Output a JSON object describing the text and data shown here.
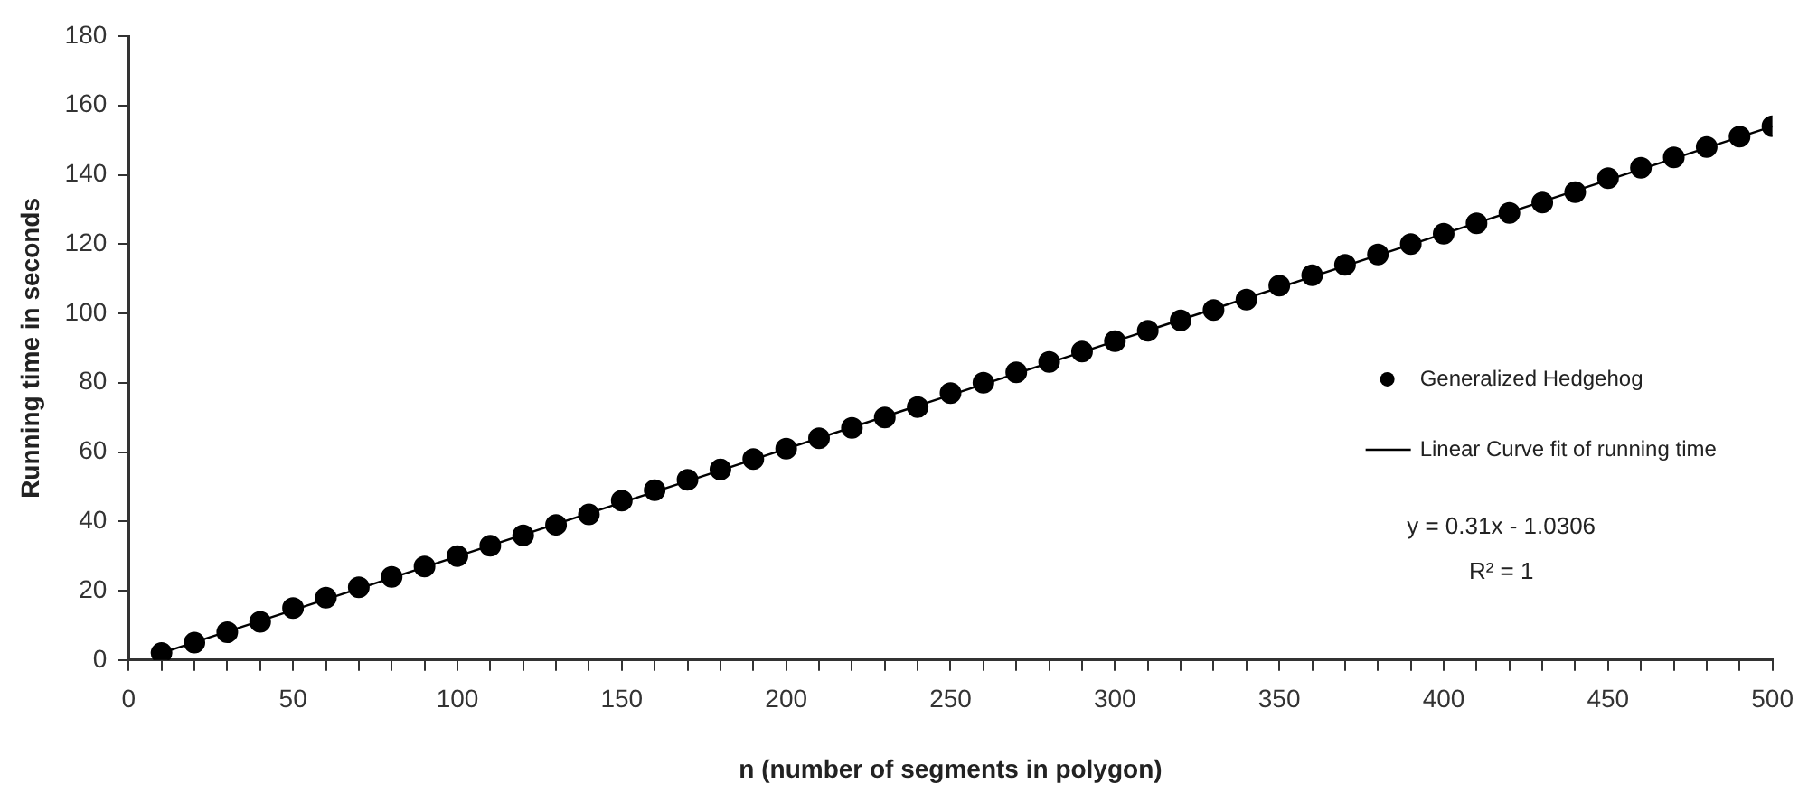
{
  "chart_data": {
    "type": "scatter",
    "xlabel": "n (number of segments in polygon)",
    "ylabel": "Running time in seconds",
    "x": [
      10,
      20,
      30,
      40,
      50,
      60,
      70,
      80,
      90,
      100,
      110,
      120,
      130,
      140,
      150,
      160,
      170,
      180,
      190,
      200,
      210,
      220,
      230,
      240,
      250,
      260,
      270,
      280,
      290,
      300,
      310,
      320,
      330,
      340,
      350,
      360,
      370,
      380,
      390,
      400,
      410,
      420,
      430,
      440,
      450,
      460,
      470,
      480,
      490,
      500
    ],
    "series": [
      {
        "name": "Generalized Hedgehog",
        "color": "#000000",
        "marker": "circle",
        "values": [
          2,
          5,
          8,
          11,
          15,
          18,
          21,
          24,
          27,
          30,
          33,
          36,
          39,
          42,
          46,
          49,
          52,
          55,
          58,
          61,
          64,
          67,
          70,
          73,
          77,
          80,
          83,
          86,
          89,
          92,
          95,
          98,
          101,
          104,
          108,
          111,
          114,
          117,
          120,
          123,
          126,
          129,
          132,
          135,
          139,
          142,
          145,
          148,
          151,
          154
        ]
      },
      {
        "name": "Linear Curve fit of running time",
        "type": "line",
        "color": "#000000",
        "marker": "none",
        "line_style": "solid",
        "x": [
          10,
          500
        ],
        "values": [
          2,
          154
        ]
      }
    ],
    "xlim": [
      0,
      500
    ],
    "xticks": [
      0,
      {
        "value": 10,
        "label": null
      },
      {
        "value": 20,
        "label": null
      },
      {
        "value": 30,
        "label": null
      },
      {
        "value": 40,
        "label": null
      },
      50,
      {
        "value": 60,
        "label": null
      },
      {
        "value": 70,
        "label": null
      },
      {
        "value": 80,
        "label": null
      },
      {
        "value": 90,
        "label": null
      },
      100,
      {
        "value": 110,
        "label": null
      },
      {
        "value": 120,
        "label": null
      },
      {
        "value": 130,
        "label": null
      },
      {
        "value": 140,
        "label": null
      },
      150,
      {
        "value": 160,
        "label": null
      },
      {
        "value": 170,
        "label": null
      },
      {
        "value": 180,
        "label": null
      },
      {
        "value": 190,
        "label": null
      },
      200,
      {
        "value": 210,
        "label": null
      },
      {
        "value": 220,
        "label": null
      },
      {
        "value": 230,
        "label": null
      },
      {
        "value": 240,
        "label": null
      },
      250,
      {
        "value": 260,
        "label": null
      },
      {
        "value": 270,
        "label": null
      },
      {
        "value": 280,
        "label": null
      },
      {
        "value": 290,
        "label": null
      },
      300,
      {
        "value": 310,
        "label": null
      },
      {
        "value": 320,
        "label": null
      },
      {
        "value": 330,
        "label": null
      },
      {
        "value": 340,
        "label": null
      },
      350,
      {
        "value": 360,
        "label": null
      },
      {
        "value": 370,
        "label": null
      },
      {
        "value": 380,
        "label": null
      },
      {
        "value": 390,
        "label": null
      },
      400,
      {
        "value": 410,
        "label": null
      },
      {
        "value": 420,
        "label": null
      },
      {
        "value": 430,
        "label": null
      },
      {
        "value": 440,
        "label": null
      },
      450,
      {
        "value": 460,
        "label": null
      },
      {
        "value": 470,
        "label": null
      },
      {
        "value": 480,
        "label": null
      },
      {
        "value": 490,
        "label": null
      },
      500
    ],
    "ylim": [
      0,
      180
    ],
    "yticks": [
      0,
      20,
      40,
      60,
      80,
      100,
      120,
      140,
      160,
      180
    ],
    "grid": false,
    "legend": "right",
    "annotations": [
      "y = 0.31x - 1.0306",
      "R² = 1"
    ]
  }
}
